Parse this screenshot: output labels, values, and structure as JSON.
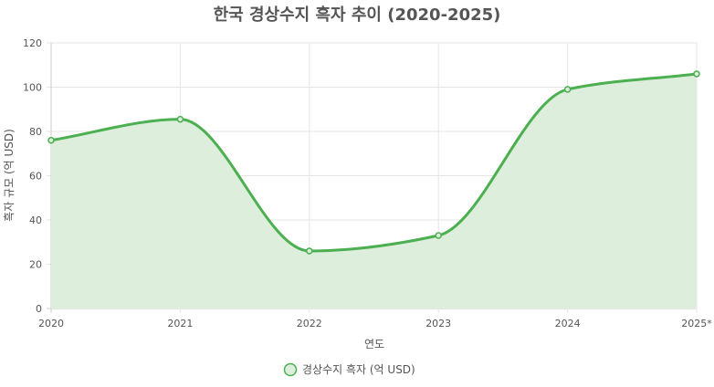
{
  "chart_data": {
    "type": "area",
    "title": "한국 경상수지 흑자 추이 (2020-2025)",
    "xlabel": "연도",
    "ylabel": "흑자 규모 (억 USD)",
    "categories": [
      "2020",
      "2021",
      "2022",
      "2023",
      "2024",
      "2025*"
    ],
    "series": [
      {
        "name": "경상수지 흑자 (억 USD)",
        "values": [
          76,
          85.5,
          26,
          33,
          99,
          106
        ]
      }
    ],
    "ylim": [
      0,
      120
    ],
    "yticks": [
      0,
      20,
      40,
      60,
      80,
      100,
      120
    ],
    "grid": true,
    "legend": "bottom",
    "colors": {
      "line": "#4caf50",
      "fill": "#ddeedd",
      "grid": "#e5e5e5",
      "axis": "#cccccc"
    }
  }
}
